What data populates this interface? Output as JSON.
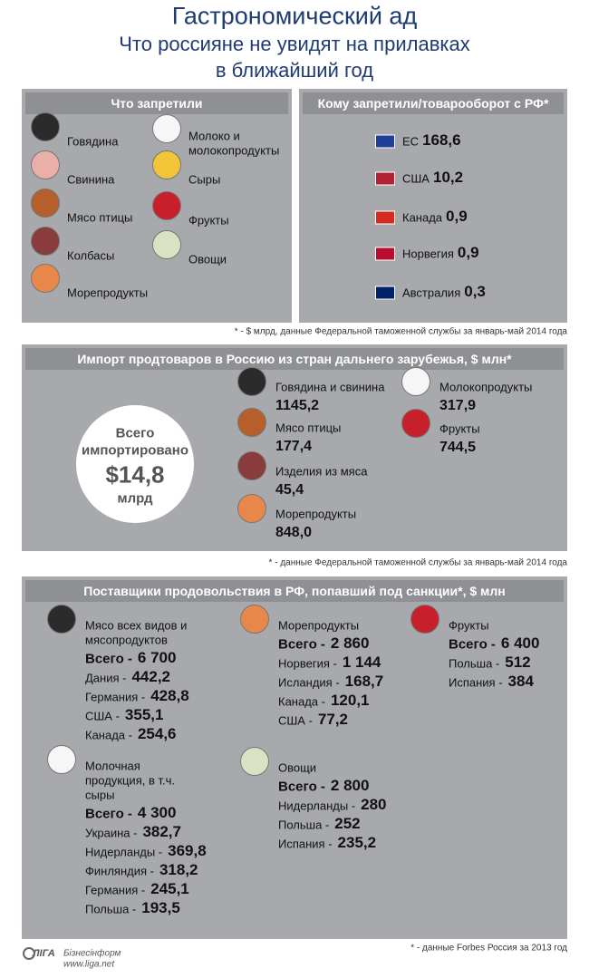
{
  "header": {
    "title": "Гастрономический ад",
    "subtitle_lines": [
      "Что россияне не увидят на прилавках",
      "в ближайший год"
    ]
  },
  "banned": {
    "title": "Что запретили",
    "items": [
      [
        "Говядина"
      ],
      [
        "Свинина"
      ],
      [
        "Мясо птицы"
      ],
      [
        "Колбасы"
      ],
      [
        "Морепродукты"
      ],
      [
        "Молоко и",
        "молокопродукты"
      ],
      [
        "Сыры"
      ],
      [
        "Фрукты"
      ],
      [
        "Овощи"
      ]
    ]
  },
  "countries": {
    "title": "Кому запретили/товарооборот с РФ*",
    "rows": [
      {
        "name": "ЕС",
        "value": "168,6"
      },
      {
        "name": "США",
        "value": "10,2"
      },
      {
        "name": "Канада",
        "value": "0,9"
      },
      {
        "name": "Норвегия",
        "value": "0,9"
      },
      {
        "name": "Австралия",
        "value": "0,3"
      }
    ]
  },
  "note1": "* - $ млрд, данные Федеральной таможенной службы за январь-май 2014 года",
  "imports": {
    "title": "Импорт продтоваров в Россию из стран дальнего зарубежья, $ млн*",
    "total_lines": [
      "Всего",
      "импортировано",
      "$14,8",
      "млрд"
    ],
    "items": [
      {
        "name": "Говядина и свинина",
        "value": "1145,2"
      },
      {
        "name": "Мясо птицы",
        "value": "177,4"
      },
      {
        "name": "Изделия из мяса",
        "value": "45,4"
      },
      {
        "name": "Морепродукты",
        "value": "848,0"
      },
      {
        "name": "Молокопродукты",
        "value": "317,9"
      },
      {
        "name": "Фрукты",
        "value": "744,5"
      }
    ]
  },
  "note2": "* - данные Федеральной таможенной службы за январь-май 2014 года",
  "suppliers": {
    "title": "Поставщики продовольствия в РФ, попавший под санкции*, $ млн",
    "groups": [
      {
        "name_lines": [
          "Мясо всех видов и",
          "мясопродуктов"
        ],
        "rows": [
          {
            "label": "Всего -",
            "value": "6 700"
          },
          {
            "label": "Дания -",
            "value": "442,2"
          },
          {
            "label": "Германия -",
            "value": "428,8"
          },
          {
            "label": "США -",
            "value": "355,1"
          },
          {
            "label": "Канада -",
            "value": "254,6"
          }
        ]
      },
      {
        "name_lines": [
          "Морепродукты"
        ],
        "rows": [
          {
            "label": "Всего -",
            "value": "2 860"
          },
          {
            "label": "Норвегия -",
            "value": "1 144"
          },
          {
            "label": "Исландия -",
            "value": "168,7"
          },
          {
            "label": "Канада -",
            "value": "120,1"
          },
          {
            "label": "США -",
            "value": "77,2"
          }
        ]
      },
      {
        "name_lines": [
          "Фрукты"
        ],
        "rows": [
          {
            "label": "Всего -",
            "value": "6 400"
          },
          {
            "label": "Польша -",
            "value": "512"
          },
          {
            "label": "Испания -",
            "value": "384"
          }
        ]
      },
      {
        "name_lines": [
          "Молочная",
          "продукция, в т.ч.",
          "сыры"
        ],
        "rows": [
          {
            "label": "Всего -",
            "value": "4 300"
          },
          {
            "label": "Украина -",
            "value": "382,7"
          },
          {
            "label": "Нидерланды -",
            "value": "369,8"
          },
          {
            "label": "Финляндия -",
            "value": "318,2"
          },
          {
            "label": "Германия -",
            "value": "245,1"
          },
          {
            "label": "Польша -",
            "value": "193,5"
          }
        ]
      },
      {
        "name_lines": [
          "Овощи"
        ],
        "rows": [
          {
            "label": "Всего -",
            "value": "2 800"
          },
          {
            "label": "Нидерланды -",
            "value": "280"
          },
          {
            "label": "Польша -",
            "value": "252"
          },
          {
            "label": "Испания -",
            "value": "235,2"
          }
        ]
      }
    ]
  },
  "note3": "* - данные Forbes Россия за 2013 год",
  "footer": {
    "logo": "ЛIГА",
    "brand": "Бізнесінформ",
    "url": "www.liga.net"
  }
}
